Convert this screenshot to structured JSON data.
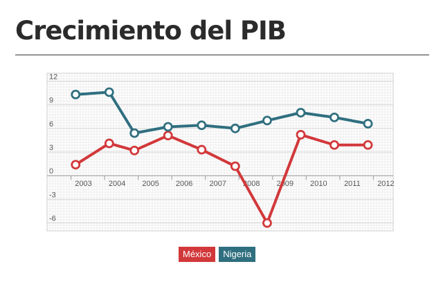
{
  "chart_data": {
    "type": "line",
    "title": "Crecimiento del PIB",
    "categories": [
      "2003",
      "2004",
      "2005",
      "2006",
      "2007",
      "2008",
      "2009",
      "2010",
      "2011",
      "2012"
    ],
    "x": [
      2002.85,
      2003.85,
      2004.6,
      2005.6,
      2006.6,
      2007.6,
      2008.55,
      2009.55,
      2010.55,
      2011.55
    ],
    "yticks": [
      12,
      9,
      6,
      3,
      0,
      -3,
      -6
    ],
    "ylim": [
      -7,
      13
    ],
    "xlabel": "",
    "ylabel": "",
    "grid": true,
    "legend": "bottom-center",
    "series": [
      {
        "name": "México",
        "color": "#d2383a",
        "values": [
          1.4,
          4.1,
          3.2,
          5.1,
          3.3,
          1.2,
          -6.0,
          5.2,
          3.9,
          3.9
        ]
      },
      {
        "name": "Nigeria",
        "color": "#2f6f7f",
        "values": [
          10.3,
          10.6,
          5.4,
          6.2,
          6.4,
          6.0,
          7.0,
          8.0,
          7.4,
          6.6
        ]
      }
    ]
  }
}
